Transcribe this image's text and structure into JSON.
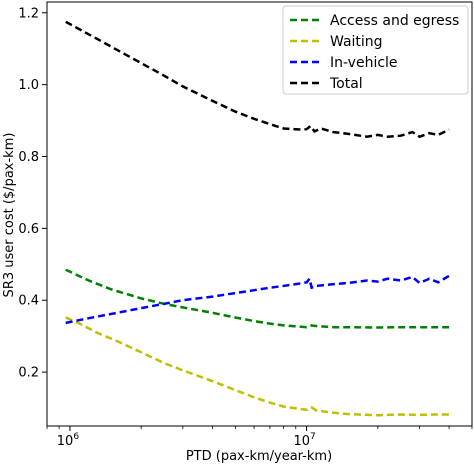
{
  "chart_data": {
    "type": "line",
    "title": "",
    "xlabel": "PTD (pax-km/year-km)",
    "ylabel": "SR3 user cost ($/pax-km)",
    "xscale": "log",
    "xlim": [
      800000,
      50000000
    ],
    "ylim": [
      0.05,
      1.23
    ],
    "x_ticks": [
      {
        "value": 1000000,
        "base": "10",
        "exp": "6"
      },
      {
        "value": 10000000,
        "base": "10",
        "exp": "7"
      }
    ],
    "y_ticks": [
      {
        "value": 0.2,
        "label": "0.2"
      },
      {
        "value": 0.4,
        "label": "0.4"
      },
      {
        "value": 0.6,
        "label": "0.6"
      },
      {
        "value": 0.8,
        "label": "0.8"
      },
      {
        "value": 1.0,
        "label": "1.0"
      },
      {
        "value": 1.2,
        "label": "1.2"
      }
    ],
    "grid": false,
    "legend_position": "top-right",
    "series": [
      {
        "name": "Access and egress",
        "color": "#008000",
        "points": [
          [
            960000,
            0.485
          ],
          [
            1200000,
            0.455
          ],
          [
            1500000,
            0.43
          ],
          [
            2000000,
            0.405
          ],
          [
            2500000,
            0.39
          ],
          [
            3000000,
            0.38
          ],
          [
            4000000,
            0.365
          ],
          [
            5000000,
            0.352
          ],
          [
            6000000,
            0.342
          ],
          [
            7000000,
            0.335
          ],
          [
            8000000,
            0.33
          ],
          [
            9500000,
            0.326
          ],
          [
            10000000,
            0.325
          ],
          [
            10500000,
            0.33
          ],
          [
            11000000,
            0.328
          ],
          [
            13000000,
            0.325
          ],
          [
            15000000,
            0.325
          ],
          [
            20000000,
            0.324
          ],
          [
            25000000,
            0.325
          ],
          [
            30000000,
            0.325
          ],
          [
            35000000,
            0.325
          ],
          [
            40000000,
            0.325
          ]
        ]
      },
      {
        "name": "Waiting",
        "color": "#bfbf00",
        "points": [
          [
            960000,
            0.352
          ],
          [
            1100000,
            0.335
          ],
          [
            1300000,
            0.31
          ],
          [
            1600000,
            0.285
          ],
          [
            2000000,
            0.255
          ],
          [
            2500000,
            0.225
          ],
          [
            3000000,
            0.205
          ],
          [
            4000000,
            0.175
          ],
          [
            5000000,
            0.15
          ],
          [
            6000000,
            0.13
          ],
          [
            7000000,
            0.115
          ],
          [
            8000000,
            0.104
          ],
          [
            9500000,
            0.097
          ],
          [
            10000000,
            0.095
          ],
          [
            10500000,
            0.102
          ],
          [
            11000000,
            0.093
          ],
          [
            13000000,
            0.087
          ],
          [
            15000000,
            0.083
          ],
          [
            20000000,
            0.08
          ],
          [
            25000000,
            0.082
          ],
          [
            30000000,
            0.081
          ],
          [
            35000000,
            0.082
          ],
          [
            40000000,
            0.082
          ]
        ]
      },
      {
        "name": "In-vehicle",
        "color": "#0000ff",
        "points": [
          [
            960000,
            0.337
          ],
          [
            1200000,
            0.35
          ],
          [
            1500000,
            0.362
          ],
          [
            2000000,
            0.378
          ],
          [
            2500000,
            0.39
          ],
          [
            3000000,
            0.4
          ],
          [
            4000000,
            0.41
          ],
          [
            5000000,
            0.42
          ],
          [
            6000000,
            0.428
          ],
          [
            7000000,
            0.435
          ],
          [
            8000000,
            0.44
          ],
          [
            9500000,
            0.447
          ],
          [
            10000000,
            0.45
          ],
          [
            10300000,
            0.46
          ],
          [
            10500000,
            0.435
          ],
          [
            11000000,
            0.44
          ],
          [
            13000000,
            0.445
          ],
          [
            15000000,
            0.448
          ],
          [
            18000000,
            0.455
          ],
          [
            20000000,
            0.452
          ],
          [
            22000000,
            0.46
          ],
          [
            25000000,
            0.455
          ],
          [
            28000000,
            0.465
          ],
          [
            30000000,
            0.448
          ],
          [
            33000000,
            0.46
          ],
          [
            36000000,
            0.45
          ],
          [
            40000000,
            0.468
          ]
        ]
      },
      {
        "name": "Total",
        "color": "#000000",
        "points": [
          [
            960000,
            1.175
          ],
          [
            1200000,
            1.14
          ],
          [
            1500000,
            1.105
          ],
          [
            2000000,
            1.06
          ],
          [
            2500000,
            1.025
          ],
          [
            3000000,
            0.995
          ],
          [
            4000000,
            0.955
          ],
          [
            5000000,
            0.925
          ],
          [
            6000000,
            0.905
          ],
          [
            7000000,
            0.89
          ],
          [
            8000000,
            0.878
          ],
          [
            9500000,
            0.875
          ],
          [
            10000000,
            0.876
          ],
          [
            10400000,
            0.885
          ],
          [
            10800000,
            0.87
          ],
          [
            11500000,
            0.878
          ],
          [
            13000000,
            0.868
          ],
          [
            15000000,
            0.863
          ],
          [
            18000000,
            0.855
          ],
          [
            20000000,
            0.86
          ],
          [
            22000000,
            0.855
          ],
          [
            25000000,
            0.858
          ],
          [
            28000000,
            0.868
          ],
          [
            30000000,
            0.855
          ],
          [
            33000000,
            0.865
          ],
          [
            36000000,
            0.86
          ],
          [
            40000000,
            0.875
          ]
        ]
      }
    ]
  }
}
